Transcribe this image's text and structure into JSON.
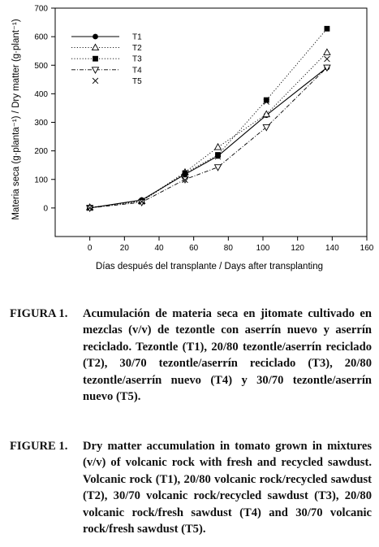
{
  "chart_data": {
    "type": "line",
    "xlabel": "Días después del transplante / Days after transplanting",
    "ylabel": "Materia seca (g·planta⁻¹) / Dry matter (g·plant⁻¹)",
    "xlim": [
      -20,
      160
    ],
    "ylim": [
      -100,
      700
    ],
    "xticks": [
      0,
      20,
      40,
      60,
      80,
      100,
      120,
      140,
      160
    ],
    "yticks": [
      0,
      100,
      200,
      300,
      400,
      500,
      600,
      700
    ],
    "legend_position": "upper-left",
    "series": [
      {
        "name": "T1",
        "marker": "filled-circle",
        "line": "solid",
        "x": [
          0,
          30,
          55,
          74,
          102,
          137
        ],
        "y": [
          0,
          28,
          118,
          182,
          325,
          492
        ]
      },
      {
        "name": "T2",
        "marker": "open-triangle-up",
        "line": "dotted",
        "x": [
          0,
          30,
          55,
          74,
          102,
          137
        ],
        "y": [
          2,
          24,
          125,
          213,
          328,
          545
        ]
      },
      {
        "name": "T3",
        "marker": "filled-square",
        "line": "dotted",
        "x": [
          0,
          30,
          55,
          74,
          102,
          137
        ],
        "y": [
          1,
          23,
          122,
          186,
          378,
          628
        ]
      },
      {
        "name": "T4",
        "marker": "open-triangle-down",
        "line": "dash-dot",
        "x": [
          0,
          30,
          55,
          74,
          102,
          137
        ],
        "y": [
          0,
          20,
          100,
          143,
          283,
          492
        ]
      },
      {
        "name": "T5",
        "marker": "x",
        "line": "none",
        "x": [
          0,
          30,
          55,
          74,
          102,
          137
        ],
        "y": [
          0,
          22,
          98,
          180,
          372,
          522
        ]
      }
    ]
  },
  "caption_es": {
    "label": "FIGURA 1.",
    "text": "Acumulación de materia seca en jitomate cultivado en mezclas (v/v) de tezontle con aserrín nuevo y aserrín reciclado. Tezontle (T1), 20/80 tezontle/aserrín reciclado (T2), 30/70 tezontle/aserrín reciclado (T3), 20/80 tezontle/aserrín nuevo (T4) y 30/70 tezontle/aserrín nuevo (T5)."
  },
  "caption_en": {
    "label": "FIGURE 1.",
    "text": "Dry matter accumulation in tomato grown in mixtures (v/v) of volcanic rock with fresh and recycled sawdust. Volcanic rock (T1), 20/80 volcanic rock/recycled sawdust (T2), 30/70 volcanic rock/recycled sawdust (T3), 20/80 volcanic rock/fresh sawdust (T4) and 30/70 volcanic rock/fresh sawdust (T5)."
  }
}
